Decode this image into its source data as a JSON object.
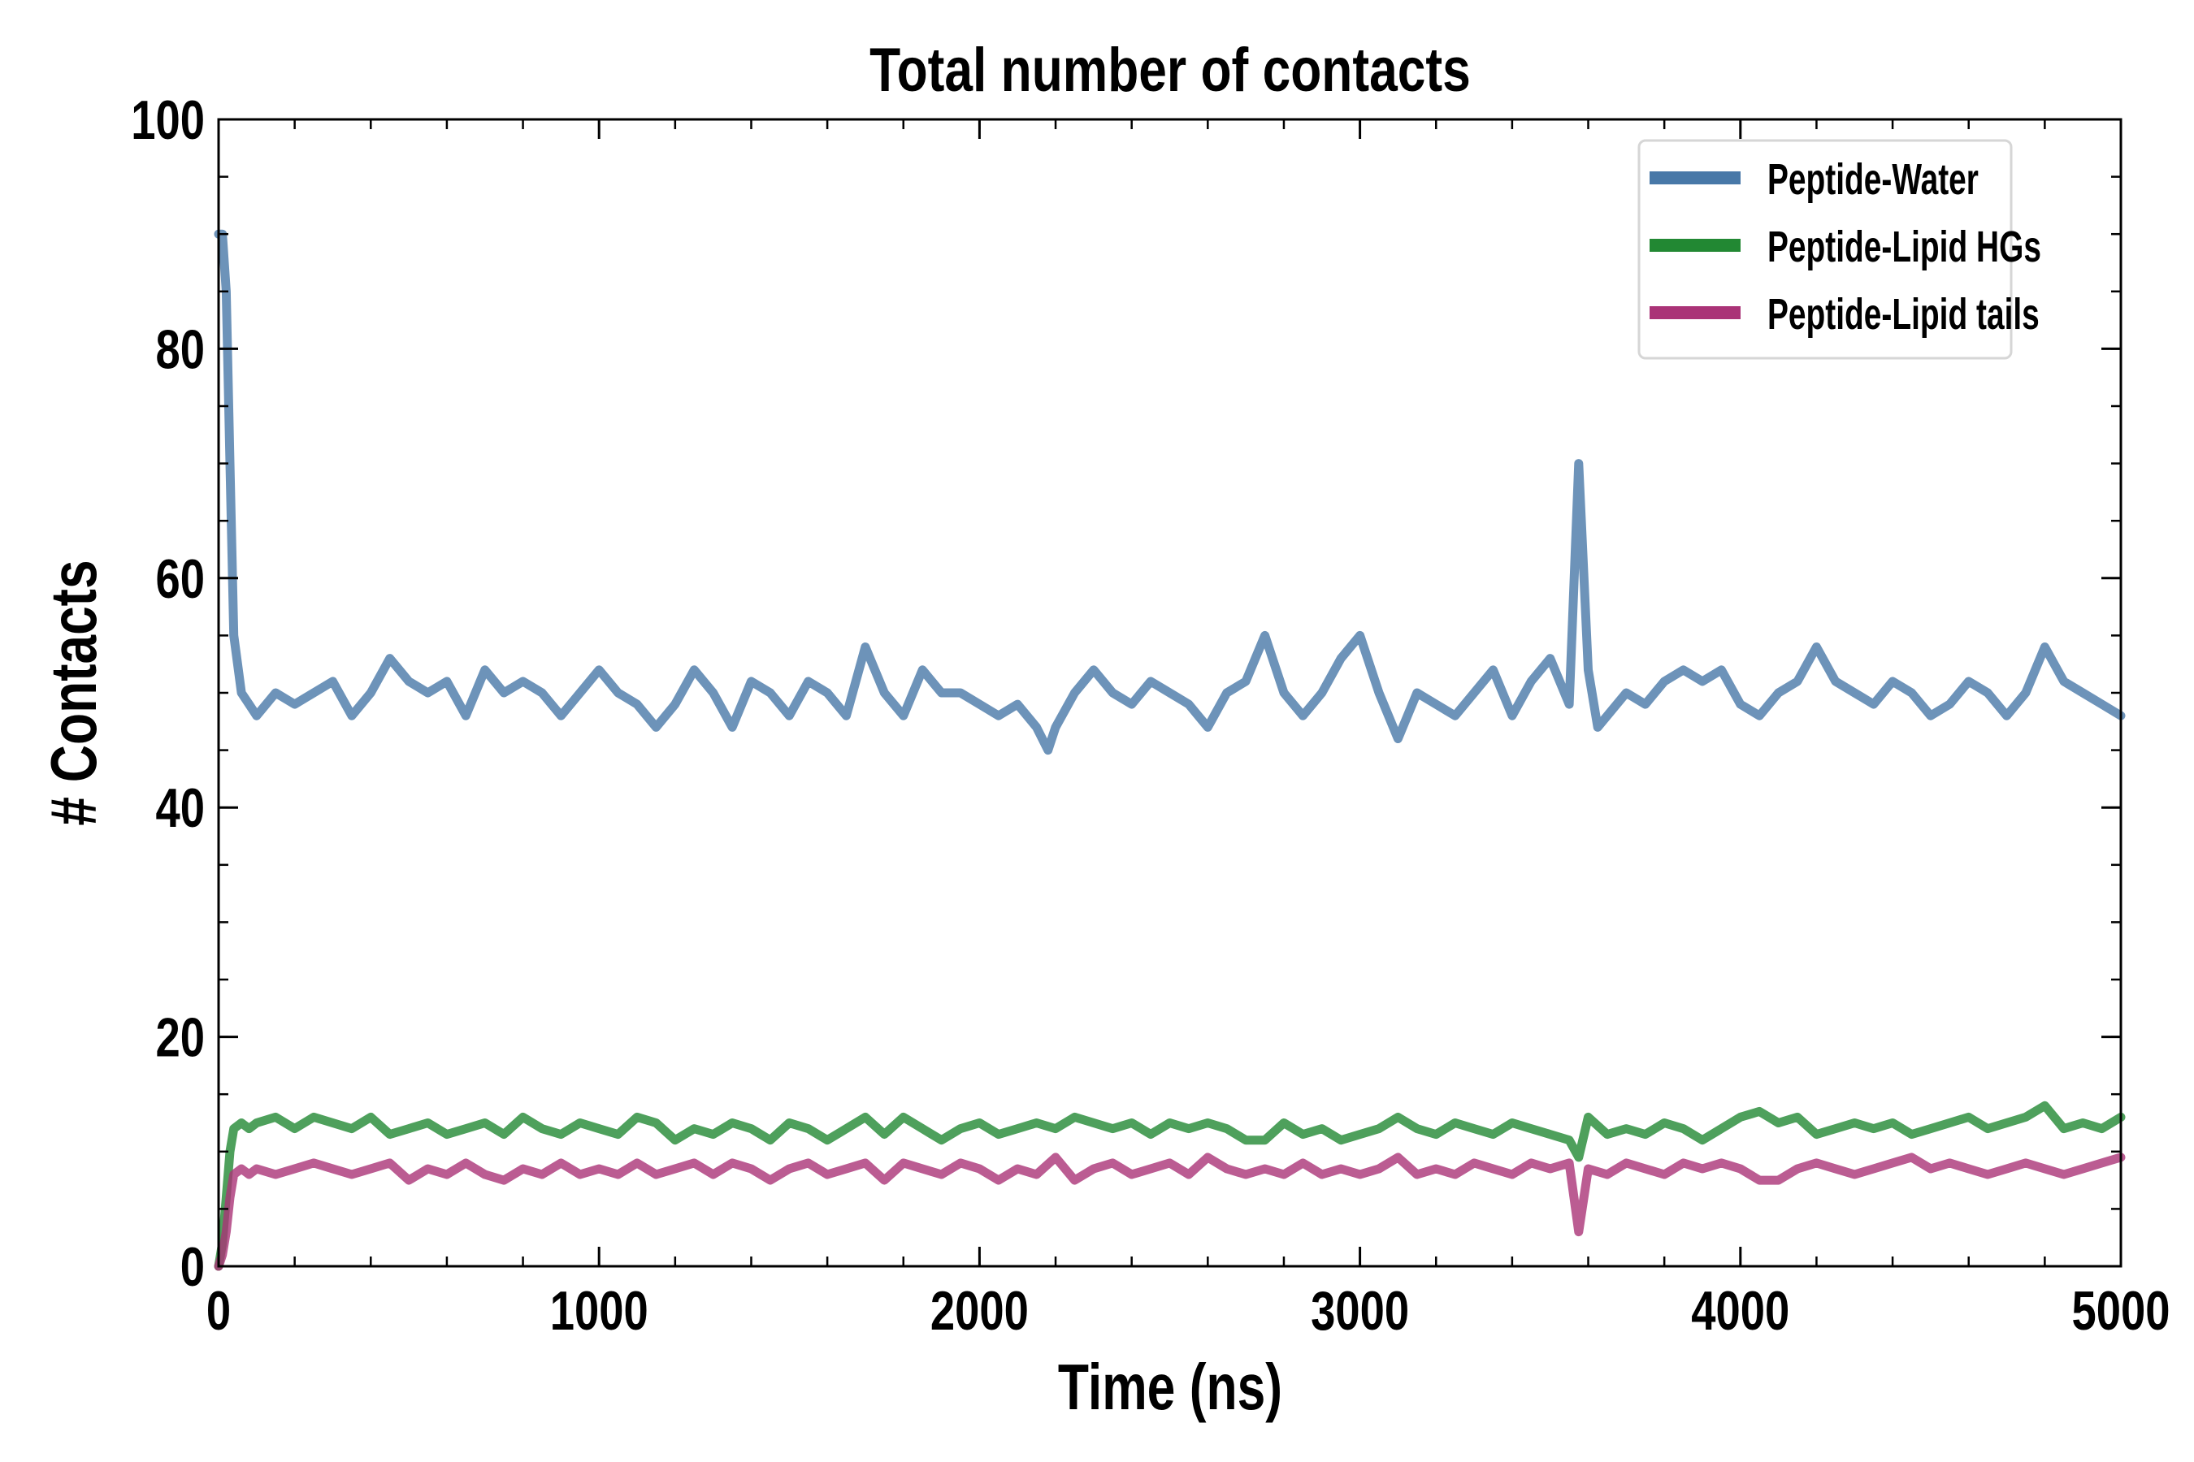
{
  "chart_data": {
    "type": "line",
    "title": "Total number of contacts",
    "xlabel": "Time (ns)",
    "ylabel": "# Contacts",
    "xlim": [
      0,
      5000
    ],
    "ylim": [
      0,
      100
    ],
    "xticks": [
      0,
      1000,
      2000,
      3000,
      4000,
      5000
    ],
    "xtick_labels": [
      "0",
      "1000",
      "2000",
      "3000",
      "4000",
      "5000"
    ],
    "yticks": [
      0,
      20,
      40,
      60,
      80,
      100
    ],
    "ytick_labels": [
      "0",
      "20",
      "40",
      "60",
      "80",
      "100"
    ],
    "x_minor_step": 200,
    "y_minor_step": 5,
    "grid": false,
    "legend_position": "top-right",
    "series": [
      {
        "name": "Peptide-Water",
        "color": "#4878a8",
        "points": [
          [
            0,
            90
          ],
          [
            10,
            90
          ],
          [
            20,
            85
          ],
          [
            30,
            70
          ],
          [
            40,
            55
          ],
          [
            60,
            50
          ],
          [
            80,
            49
          ],
          [
            100,
            48
          ],
          [
            150,
            50
          ],
          [
            200,
            49
          ],
          [
            250,
            50
          ],
          [
            300,
            51
          ],
          [
            350,
            48
          ],
          [
            400,
            50
          ],
          [
            450,
            53
          ],
          [
            500,
            51
          ],
          [
            550,
            50
          ],
          [
            600,
            51
          ],
          [
            650,
            48
          ],
          [
            700,
            52
          ],
          [
            750,
            50
          ],
          [
            800,
            51
          ],
          [
            850,
            50
          ],
          [
            900,
            48
          ],
          [
            950,
            50
          ],
          [
            1000,
            52
          ],
          [
            1050,
            50
          ],
          [
            1100,
            49
          ],
          [
            1150,
            47
          ],
          [
            1200,
            49
          ],
          [
            1250,
            52
          ],
          [
            1300,
            50
          ],
          [
            1350,
            47
          ],
          [
            1400,
            51
          ],
          [
            1450,
            50
          ],
          [
            1500,
            48
          ],
          [
            1550,
            51
          ],
          [
            1600,
            50
          ],
          [
            1650,
            48
          ],
          [
            1700,
            54
          ],
          [
            1750,
            50
          ],
          [
            1800,
            48
          ],
          [
            1850,
            52
          ],
          [
            1900,
            50
          ],
          [
            1950,
            50
          ],
          [
            2000,
            49
          ],
          [
            2050,
            48
          ],
          [
            2100,
            49
          ],
          [
            2150,
            47
          ],
          [
            2180,
            45
          ],
          [
            2200,
            47
          ],
          [
            2250,
            50
          ],
          [
            2300,
            52
          ],
          [
            2350,
            50
          ],
          [
            2400,
            49
          ],
          [
            2450,
            51
          ],
          [
            2500,
            50
          ],
          [
            2550,
            49
          ],
          [
            2600,
            47
          ],
          [
            2650,
            50
          ],
          [
            2700,
            51
          ],
          [
            2750,
            55
          ],
          [
            2800,
            50
          ],
          [
            2850,
            48
          ],
          [
            2900,
            50
          ],
          [
            2950,
            53
          ],
          [
            3000,
            55
          ],
          [
            3050,
            50
          ],
          [
            3100,
            46
          ],
          [
            3150,
            50
          ],
          [
            3200,
            49
          ],
          [
            3250,
            48
          ],
          [
            3300,
            50
          ],
          [
            3350,
            52
          ],
          [
            3400,
            48
          ],
          [
            3450,
            51
          ],
          [
            3500,
            53
          ],
          [
            3550,
            49
          ],
          [
            3575,
            70
          ],
          [
            3600,
            52
          ],
          [
            3625,
            47
          ],
          [
            3650,
            48
          ],
          [
            3700,
            50
          ],
          [
            3750,
            49
          ],
          [
            3800,
            51
          ],
          [
            3850,
            52
          ],
          [
            3900,
            51
          ],
          [
            3950,
            52
          ],
          [
            4000,
            49
          ],
          [
            4050,
            48
          ],
          [
            4100,
            50
          ],
          [
            4150,
            51
          ],
          [
            4200,
            54
          ],
          [
            4250,
            51
          ],
          [
            4300,
            50
          ],
          [
            4350,
            49
          ],
          [
            4400,
            51
          ],
          [
            4450,
            50
          ],
          [
            4500,
            48
          ],
          [
            4550,
            49
          ],
          [
            4600,
            51
          ],
          [
            4650,
            50
          ],
          [
            4700,
            48
          ],
          [
            4750,
            50
          ],
          [
            4800,
            54
          ],
          [
            4850,
            51
          ],
          [
            4900,
            50
          ],
          [
            4950,
            49
          ],
          [
            5000,
            48
          ]
        ]
      },
      {
        "name": "Peptide-Lipid HGs",
        "color": "#228833",
        "points": [
          [
            0,
            0
          ],
          [
            10,
            2
          ],
          [
            20,
            6
          ],
          [
            30,
            10
          ],
          [
            40,
            12
          ],
          [
            60,
            12.5
          ],
          [
            80,
            12
          ],
          [
            100,
            12.5
          ],
          [
            150,
            13
          ],
          [
            200,
            12
          ],
          [
            250,
            13
          ],
          [
            300,
            12.5
          ],
          [
            350,
            12
          ],
          [
            400,
            13
          ],
          [
            450,
            11.5
          ],
          [
            500,
            12
          ],
          [
            550,
            12.5
          ],
          [
            600,
            11.5
          ],
          [
            650,
            12
          ],
          [
            700,
            12.5
          ],
          [
            750,
            11.5
          ],
          [
            800,
            13
          ],
          [
            850,
            12
          ],
          [
            900,
            11.5
          ],
          [
            950,
            12.5
          ],
          [
            1000,
            12
          ],
          [
            1050,
            11.5
          ],
          [
            1100,
            13
          ],
          [
            1150,
            12.5
          ],
          [
            1200,
            11
          ],
          [
            1250,
            12
          ],
          [
            1300,
            11.5
          ],
          [
            1350,
            12.5
          ],
          [
            1400,
            12
          ],
          [
            1450,
            11
          ],
          [
            1500,
            12.5
          ],
          [
            1550,
            12
          ],
          [
            1600,
            11
          ],
          [
            1650,
            12
          ],
          [
            1700,
            13
          ],
          [
            1750,
            11.5
          ],
          [
            1800,
            13
          ],
          [
            1850,
            12
          ],
          [
            1900,
            11
          ],
          [
            1950,
            12
          ],
          [
            2000,
            12.5
          ],
          [
            2050,
            11.5
          ],
          [
            2100,
            12
          ],
          [
            2150,
            12.5
          ],
          [
            2200,
            12
          ],
          [
            2250,
            13
          ],
          [
            2300,
            12.5
          ],
          [
            2350,
            12
          ],
          [
            2400,
            12.5
          ],
          [
            2450,
            11.5
          ],
          [
            2500,
            12.5
          ],
          [
            2550,
            12
          ],
          [
            2600,
            12.5
          ],
          [
            2650,
            12
          ],
          [
            2700,
            11
          ],
          [
            2750,
            11
          ],
          [
            2800,
            12.5
          ],
          [
            2850,
            11.5
          ],
          [
            2900,
            12
          ],
          [
            2950,
            11
          ],
          [
            3000,
            11.5
          ],
          [
            3050,
            12
          ],
          [
            3100,
            13
          ],
          [
            3150,
            12
          ],
          [
            3200,
            11.5
          ],
          [
            3250,
            12.5
          ],
          [
            3300,
            12
          ],
          [
            3350,
            11.5
          ],
          [
            3400,
            12.5
          ],
          [
            3450,
            12
          ],
          [
            3500,
            11.5
          ],
          [
            3550,
            11
          ],
          [
            3575,
            9.5
          ],
          [
            3600,
            13
          ],
          [
            3650,
            11.5
          ],
          [
            3700,
            12
          ],
          [
            3750,
            11.5
          ],
          [
            3800,
            12.5
          ],
          [
            3850,
            12
          ],
          [
            3900,
            11
          ],
          [
            3950,
            12
          ],
          [
            4000,
            13
          ],
          [
            4050,
            13.5
          ],
          [
            4100,
            12.5
          ],
          [
            4150,
            13
          ],
          [
            4200,
            11.5
          ],
          [
            4250,
            12
          ],
          [
            4300,
            12.5
          ],
          [
            4350,
            12
          ],
          [
            4400,
            12.5
          ],
          [
            4450,
            11.5
          ],
          [
            4500,
            12
          ],
          [
            4550,
            12.5
          ],
          [
            4600,
            13
          ],
          [
            4650,
            12
          ],
          [
            4700,
            12.5
          ],
          [
            4750,
            13
          ],
          [
            4800,
            14
          ],
          [
            4850,
            12
          ],
          [
            4900,
            12.5
          ],
          [
            4950,
            12
          ],
          [
            5000,
            13
          ]
        ]
      },
      {
        "name": "Peptide-Lipid tails",
        "color": "#aa3377",
        "points": [
          [
            0,
            0
          ],
          [
            10,
            1
          ],
          [
            20,
            3
          ],
          [
            30,
            6
          ],
          [
            40,
            8
          ],
          [
            60,
            8.5
          ],
          [
            80,
            8
          ],
          [
            100,
            8.5
          ],
          [
            150,
            8
          ],
          [
            200,
            8.5
          ],
          [
            250,
            9
          ],
          [
            300,
            8.5
          ],
          [
            350,
            8
          ],
          [
            400,
            8.5
          ],
          [
            450,
            9
          ],
          [
            500,
            7.5
          ],
          [
            550,
            8.5
          ],
          [
            600,
            8
          ],
          [
            650,
            9
          ],
          [
            700,
            8
          ],
          [
            750,
            7.5
          ],
          [
            800,
            8.5
          ],
          [
            850,
            8
          ],
          [
            900,
            9
          ],
          [
            950,
            8
          ],
          [
            1000,
            8.5
          ],
          [
            1050,
            8
          ],
          [
            1100,
            9
          ],
          [
            1150,
            8
          ],
          [
            1200,
            8.5
          ],
          [
            1250,
            9
          ],
          [
            1300,
            8
          ],
          [
            1350,
            9
          ],
          [
            1400,
            8.5
          ],
          [
            1450,
            7.5
          ],
          [
            1500,
            8.5
          ],
          [
            1550,
            9
          ],
          [
            1600,
            8
          ],
          [
            1650,
            8.5
          ],
          [
            1700,
            9
          ],
          [
            1750,
            7.5
          ],
          [
            1800,
            9
          ],
          [
            1850,
            8.5
          ],
          [
            1900,
            8
          ],
          [
            1950,
            9
          ],
          [
            2000,
            8.5
          ],
          [
            2050,
            7.5
          ],
          [
            2100,
            8.5
          ],
          [
            2150,
            8
          ],
          [
            2200,
            9.5
          ],
          [
            2250,
            7.5
          ],
          [
            2300,
            8.5
          ],
          [
            2350,
            9
          ],
          [
            2400,
            8
          ],
          [
            2450,
            8.5
          ],
          [
            2500,
            9
          ],
          [
            2550,
            8
          ],
          [
            2600,
            9.5
          ],
          [
            2650,
            8.5
          ],
          [
            2700,
            8
          ],
          [
            2750,
            8.5
          ],
          [
            2800,
            8
          ],
          [
            2850,
            9
          ],
          [
            2900,
            8
          ],
          [
            2950,
            8.5
          ],
          [
            3000,
            8
          ],
          [
            3050,
            8.5
          ],
          [
            3100,
            9.5
          ],
          [
            3150,
            8
          ],
          [
            3200,
            8.5
          ],
          [
            3250,
            8
          ],
          [
            3300,
            9
          ],
          [
            3350,
            8.5
          ],
          [
            3400,
            8
          ],
          [
            3450,
            9
          ],
          [
            3500,
            8.5
          ],
          [
            3550,
            9
          ],
          [
            3575,
            3
          ],
          [
            3600,
            8.5
          ],
          [
            3650,
            8
          ],
          [
            3700,
            9
          ],
          [
            3750,
            8.5
          ],
          [
            3800,
            8
          ],
          [
            3850,
            9
          ],
          [
            3900,
            8.5
          ],
          [
            3950,
            9
          ],
          [
            4000,
            8.5
          ],
          [
            4050,
            7.5
          ],
          [
            4100,
            7.5
          ],
          [
            4150,
            8.5
          ],
          [
            4200,
            9
          ],
          [
            4250,
            8.5
          ],
          [
            4300,
            8
          ],
          [
            4350,
            8.5
          ],
          [
            4400,
            9
          ],
          [
            4450,
            9.5
          ],
          [
            4500,
            8.5
          ],
          [
            4550,
            9
          ],
          [
            4600,
            8.5
          ],
          [
            4650,
            8
          ],
          [
            4700,
            8.5
          ],
          [
            4750,
            9
          ],
          [
            4800,
            8.5
          ],
          [
            4850,
            8
          ],
          [
            4900,
            8.5
          ],
          [
            4950,
            9
          ],
          [
            5000,
            9.5
          ]
        ]
      }
    ]
  }
}
